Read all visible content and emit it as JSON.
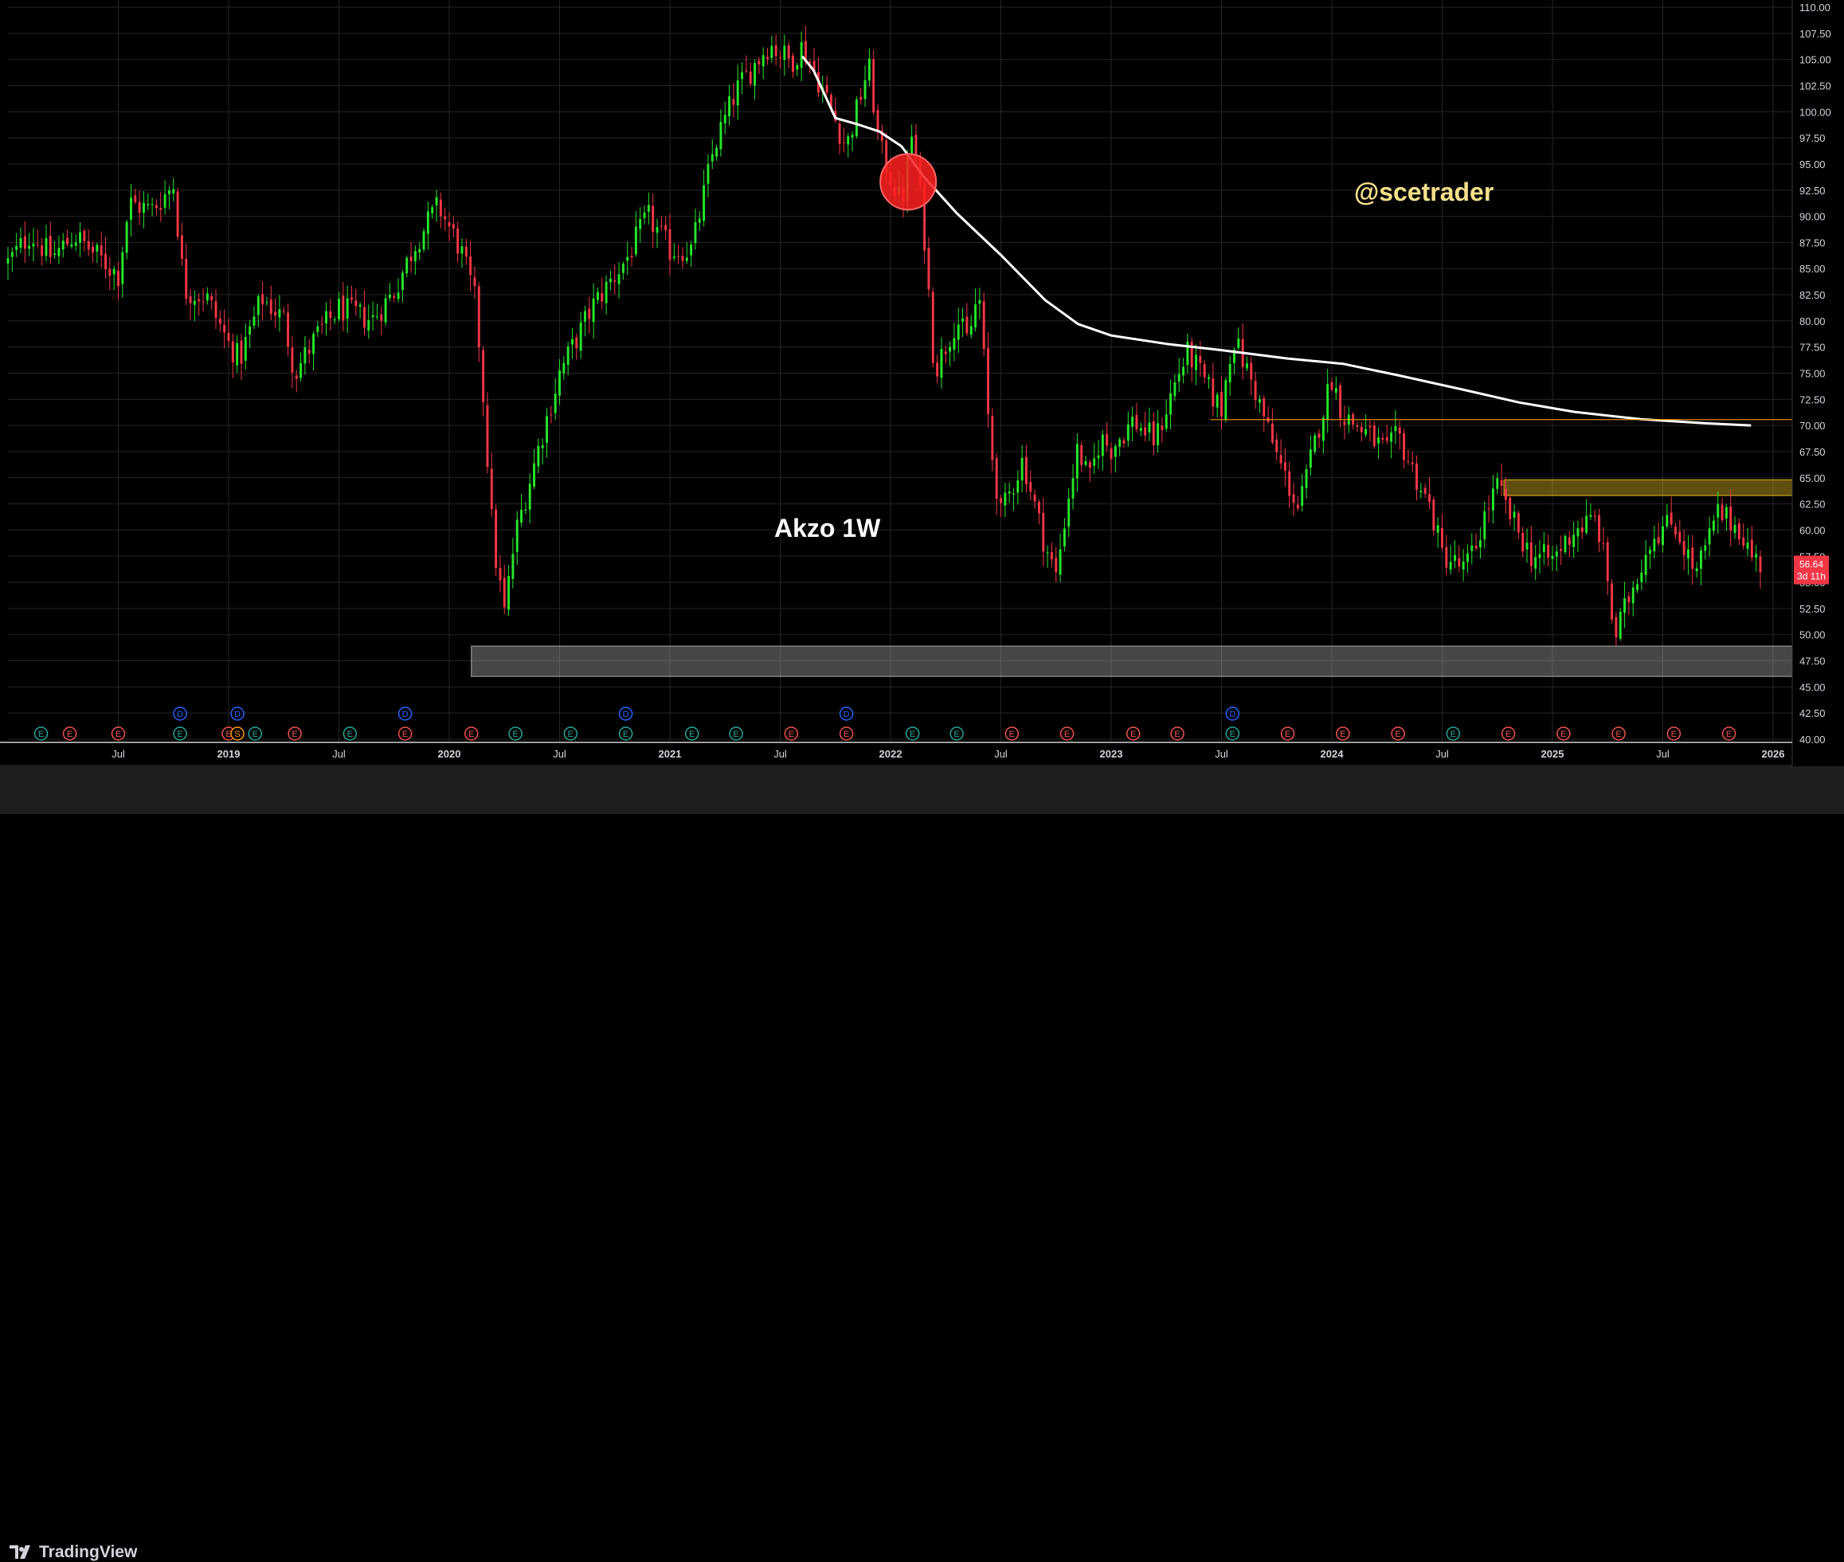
{
  "chart_data": {
    "type": "candlestick",
    "title": "Akzo 1W",
    "watermark": "@scetrader",
    "timeframe": "1W",
    "ylim": [
      40,
      110
    ],
    "y_ticks": [
      "40.00",
      "42.50",
      "45.00",
      "47.50",
      "50.00",
      "52.50",
      "55.00",
      "57.50",
      "60.00",
      "62.50",
      "65.00",
      "67.50",
      "70.00",
      "72.50",
      "75.00",
      "77.50",
      "80.00",
      "82.50",
      "85.00",
      "87.50",
      "90.00",
      "92.50",
      "95.00",
      "97.50",
      "100.00",
      "102.50",
      "105.00",
      "107.50",
      "110.00"
    ],
    "x_ticks": [
      "Jul",
      "2019",
      "Jul",
      "2020",
      "Jul",
      "2021",
      "Jul",
      "2022",
      "Jul",
      "2023",
      "Jul",
      "2024",
      "Jul",
      "2025",
      "Jul",
      "2026"
    ],
    "price_path": [
      [
        2018.0,
        85.6
      ],
      [
        2018.1,
        88.3
      ],
      [
        2018.2,
        86.1
      ],
      [
        2018.3,
        88.2
      ],
      [
        2018.5,
        84.4
      ],
      [
        2018.55,
        91.3
      ],
      [
        2018.65,
        90.6
      ],
      [
        2018.75,
        93.0
      ],
      [
        2018.8,
        82.9
      ],
      [
        2018.9,
        82.3
      ],
      [
        2019.0,
        77.8
      ],
      [
        2019.05,
        76.3
      ],
      [
        2019.15,
        82.2
      ],
      [
        2019.25,
        80.2
      ],
      [
        2019.3,
        75.0
      ],
      [
        2019.4,
        78.6
      ],
      [
        2019.5,
        81.2
      ],
      [
        2019.65,
        80.1
      ],
      [
        2019.75,
        82.8
      ],
      [
        2019.85,
        87.6
      ],
      [
        2019.95,
        91.0
      ],
      [
        2020.05,
        86.9
      ],
      [
        2020.12,
        81.8
      ],
      [
        2020.15,
        74.0
      ],
      [
        2020.2,
        58.6
      ],
      [
        2020.25,
        52.1
      ],
      [
        2020.3,
        59.6
      ],
      [
        2020.4,
        67.5
      ],
      [
        2020.5,
        75.0
      ],
      [
        2020.65,
        81.4
      ],
      [
        2020.8,
        85.8
      ],
      [
        2020.9,
        90.0
      ],
      [
        2021.0,
        86.8
      ],
      [
        2021.1,
        86.8
      ],
      [
        2021.2,
        96.6
      ],
      [
        2021.3,
        102.0
      ],
      [
        2021.45,
        106.5
      ],
      [
        2021.55,
        104.8
      ],
      [
        2021.6,
        106.3
      ],
      [
        2021.7,
        101.8
      ],
      [
        2021.8,
        96.6
      ],
      [
        2021.85,
        100.4
      ],
      [
        2021.9,
        104.5
      ],
      [
        2021.95,
        96.6
      ],
      [
        2022.05,
        91.1
      ],
      [
        2022.1,
        98.3
      ],
      [
        2022.15,
        89.0
      ],
      [
        2022.2,
        75.1
      ],
      [
        2022.3,
        80.2
      ],
      [
        2022.35,
        78.0
      ],
      [
        2022.4,
        82.9
      ],
      [
        2022.45,
        68.6
      ],
      [
        2022.5,
        61.4
      ],
      [
        2022.6,
        66.8
      ],
      [
        2022.65,
        62.6
      ],
      [
        2022.7,
        58.6
      ],
      [
        2022.75,
        55.6
      ],
      [
        2022.8,
        62.5
      ],
      [
        2022.85,
        67.9
      ],
      [
        2022.9,
        64.5
      ],
      [
        2022.95,
        68.8
      ],
      [
        2023.0,
        67.8
      ],
      [
        2023.1,
        70.5
      ],
      [
        2023.2,
        68.5
      ],
      [
        2023.3,
        74.7
      ],
      [
        2023.35,
        77.0
      ],
      [
        2023.45,
        73.1
      ],
      [
        2023.5,
        71.5
      ],
      [
        2023.55,
        78.6
      ],
      [
        2023.65,
        73.5
      ],
      [
        2023.75,
        67.1
      ],
      [
        2023.85,
        61.9
      ],
      [
        2023.95,
        70.7
      ],
      [
        2024.0,
        74.6
      ],
      [
        2024.05,
        71.0
      ],
      [
        2024.15,
        69.4
      ],
      [
        2024.25,
        67.4
      ],
      [
        2024.3,
        69.1
      ],
      [
        2024.35,
        66.5
      ],
      [
        2024.45,
        61.9
      ],
      [
        2024.5,
        57.7
      ],
      [
        2024.6,
        56.2
      ],
      [
        2024.65,
        58.3
      ],
      [
        2024.7,
        61.9
      ],
      [
        2024.75,
        64.1
      ],
      [
        2024.8,
        61.7
      ],
      [
        2024.9,
        57.6
      ],
      [
        2025.0,
        57.2
      ],
      [
        2025.1,
        60.1
      ],
      [
        2025.2,
        61.0
      ],
      [
        2025.25,
        55.4
      ],
      [
        2025.28,
        49.5
      ],
      [
        2025.35,
        53.8
      ],
      [
        2025.45,
        59.5
      ],
      [
        2025.55,
        60.8
      ],
      [
        2025.65,
        55.7
      ],
      [
        2025.75,
        61.6
      ],
      [
        2025.85,
        60.2
      ],
      [
        2025.9,
        57.6
      ],
      [
        2025.95,
        56.6
      ]
    ],
    "moving_average": [
      [
        2021.6,
        105.3
      ],
      [
        2021.65,
        104.0
      ],
      [
        2021.75,
        99.4
      ],
      [
        2021.85,
        98.8
      ],
      [
        2021.95,
        98.1
      ],
      [
        2022.05,
        96.7
      ],
      [
        2022.15,
        93.8
      ],
      [
        2022.3,
        90.3
      ],
      [
        2022.5,
        86.3
      ],
      [
        2022.7,
        82.0
      ],
      [
        2022.85,
        79.7
      ],
      [
        2023.0,
        78.6
      ],
      [
        2023.25,
        77.8
      ],
      [
        2023.5,
        77.2
      ],
      [
        2023.8,
        76.4
      ],
      [
        2024.05,
        75.9
      ],
      [
        2024.3,
        74.8
      ],
      [
        2024.6,
        73.4
      ],
      [
        2024.85,
        72.2
      ],
      [
        2025.1,
        71.3
      ],
      [
        2025.4,
        70.6
      ],
      [
        2025.7,
        70.2
      ],
      [
        2025.9,
        70.0
      ]
    ],
    "current_price": {
      "value": 56.64,
      "label": "56.64",
      "countdown": "3d 11h",
      "color": "#f23645"
    },
    "level_line": {
      "value": 70.56,
      "label": "70.56",
      "color": "#ff9800"
    },
    "zones": [
      {
        "from": 46.0,
        "to": 48.9,
        "x_start": 2020.1,
        "color": "#9e9e9e"
      },
      {
        "from": 63.3,
        "to": 64.8,
        "x_start": 2024.78,
        "color": "#d4b020"
      }
    ],
    "highlight": {
      "x": 2022.08,
      "y": 93.3,
      "color": "#ff2020"
    },
    "events": [
      {
        "type": "E",
        "x": 2018.15,
        "color": "#26a69a"
      },
      {
        "type": "E",
        "x": 2018.28,
        "color": "#ef5350"
      },
      {
        "type": "E",
        "x": 2018.5,
        "color": "#ef5350"
      },
      {
        "type": "D",
        "x": 2018.78,
        "color": "#2962ff"
      },
      {
        "type": "E",
        "x": 2018.78,
        "color": "#26a69a"
      },
      {
        "type": "E",
        "x": 2019.0,
        "color": "#ef5350"
      },
      {
        "type": "D",
        "x": 2019.04,
        "color": "#2962ff"
      },
      {
        "type": "S",
        "x": 2019.04,
        "color": "#ff9800"
      },
      {
        "type": "E",
        "x": 2019.12,
        "color": "#26a69a"
      },
      {
        "type": "E",
        "x": 2019.3,
        "color": "#ef5350"
      },
      {
        "type": "E",
        "x": 2019.55,
        "color": "#26a69a"
      },
      {
        "type": "D",
        "x": 2019.8,
        "color": "#2962ff"
      },
      {
        "type": "E",
        "x": 2019.8,
        "color": "#ef5350"
      },
      {
        "type": "E",
        "x": 2020.1,
        "color": "#ef5350"
      },
      {
        "type": "E",
        "x": 2020.3,
        "color": "#26a69a"
      },
      {
        "type": "E",
        "x": 2020.55,
        "color": "#26a69a"
      },
      {
        "type": "D",
        "x": 2020.8,
        "color": "#2962ff"
      },
      {
        "type": "E",
        "x": 2020.8,
        "color": "#26a69a"
      },
      {
        "type": "E",
        "x": 2021.1,
        "color": "#26a69a"
      },
      {
        "type": "E",
        "x": 2021.3,
        "color": "#26a69a"
      },
      {
        "type": "E",
        "x": 2021.55,
        "color": "#ef5350"
      },
      {
        "type": "D",
        "x": 2021.8,
        "color": "#2962ff"
      },
      {
        "type": "E",
        "x": 2021.8,
        "color": "#ef5350"
      },
      {
        "type": "E",
        "x": 2022.1,
        "color": "#26a69a"
      },
      {
        "type": "E",
        "x": 2022.3,
        "color": "#26a69a"
      },
      {
        "type": "E",
        "x": 2022.55,
        "color": "#ef5350"
      },
      {
        "type": "E",
        "x": 2022.8,
        "color": "#ef5350"
      },
      {
        "type": "E",
        "x": 2023.1,
        "color": "#ef5350"
      },
      {
        "type": "E",
        "x": 2023.3,
        "color": "#ef5350"
      },
      {
        "type": "D",
        "x": 2023.55,
        "color": "#2962ff"
      },
      {
        "type": "E",
        "x": 2023.55,
        "color": "#26a69a"
      },
      {
        "type": "E",
        "x": 2023.8,
        "color": "#ef5350"
      },
      {
        "type": "E",
        "x": 2024.05,
        "color": "#ef5350"
      },
      {
        "type": "E",
        "x": 2024.3,
        "color": "#ef5350"
      },
      {
        "type": "E",
        "x": 2024.55,
        "color": "#26a69a"
      },
      {
        "type": "E",
        "x": 2024.8,
        "color": "#ef5350"
      },
      {
        "type": "E",
        "x": 2025.05,
        "color": "#ef5350"
      },
      {
        "type": "E",
        "x": 2025.3,
        "color": "#ef5350"
      },
      {
        "type": "E",
        "x": 2025.55,
        "color": "#ef5350"
      },
      {
        "type": "E",
        "x": 2025.8,
        "color": "#ef5350"
      }
    ]
  },
  "footer": {
    "brand": "TradingView"
  },
  "colors": {
    "up": "#26e62b",
    "down": "#f23645",
    "ma": "#ffffff",
    "watermark": "#f5e08a"
  }
}
